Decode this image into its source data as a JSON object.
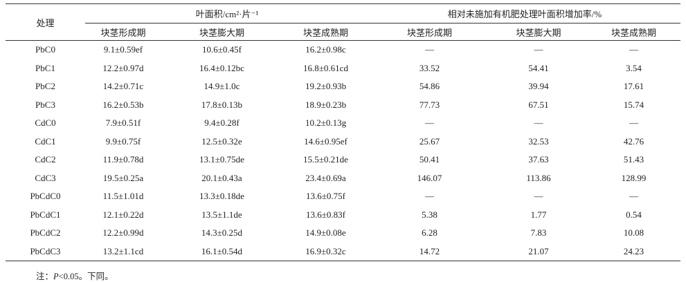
{
  "table": {
    "header": {
      "label": "处理",
      "group1": "叶面积/cm²·片⁻¹",
      "group2": "相对未施加有机肥处理叶面积增加率/%",
      "sub": [
        "块茎形成期",
        "块茎膨大期",
        "块茎成熟期",
        "块茎形成期",
        "块茎膨大期",
        "块茎成熟期"
      ]
    },
    "rows": [
      [
        "PbC0",
        "9.1±0.59ef",
        "10.6±0.45f",
        "16.2±0.98c",
        "—",
        "—",
        "—"
      ],
      [
        "PbC1",
        "12.2±0.97d",
        "16.4±0.12bc",
        "16.8±0.61cd",
        "33.52",
        "54.41",
        "3.54"
      ],
      [
        "PbC2",
        "14.2±0.71c",
        "14.9±1.0c",
        "19.2±0.93b",
        "54.86",
        "39.94",
        "17.61"
      ],
      [
        "PbC3",
        "16.2±0.53b",
        "17.8±0.13b",
        "18.9±0.23b",
        "77.73",
        "67.51",
        "15.74"
      ],
      [
        "CdC0",
        "7.9±0.51f",
        "9.4±0.28f",
        "10.2±0.13g",
        "—",
        "—",
        "—"
      ],
      [
        "CdC1",
        "9.9±0.75f",
        "12.5±0.32e",
        "14.6±0.95ef",
        "25.67",
        "32.53",
        "42.76"
      ],
      [
        "CdC2",
        "11.9±0.78d",
        "13.1±0.75de",
        "15.5±0.21de",
        "50.41",
        "37.63",
        "51.43"
      ],
      [
        "CdC3",
        "19.5±0.25a",
        "20.1±0.43a",
        "23.4±0.69a",
        "146.07",
        "113.86",
        "128.99"
      ],
      [
        "PbCdC0",
        "11.5±1.01d",
        "13.3±0.18de",
        "13.6±0.75f",
        "—",
        "—",
        "—"
      ],
      [
        "PbCdC1",
        "12.1±0.22d",
        "13.5±1.1de",
        "13.6±0.83f",
        "5.38",
        "1.77",
        "0.54"
      ],
      [
        "PbCdC2",
        "12.2±0.99d",
        "14.3±0.25d",
        "14.9±0.08e",
        "6.28",
        "7.83",
        "10.08"
      ],
      [
        "PbCdC3",
        "13.2±1.1cd",
        "16.1±0.54d",
        "16.9±0.32c",
        "14.72",
        "21.07",
        "24.23"
      ]
    ]
  },
  "note": {
    "prefix": "注：",
    "italic": "P",
    "rest": "<0.05。下同。"
  }
}
